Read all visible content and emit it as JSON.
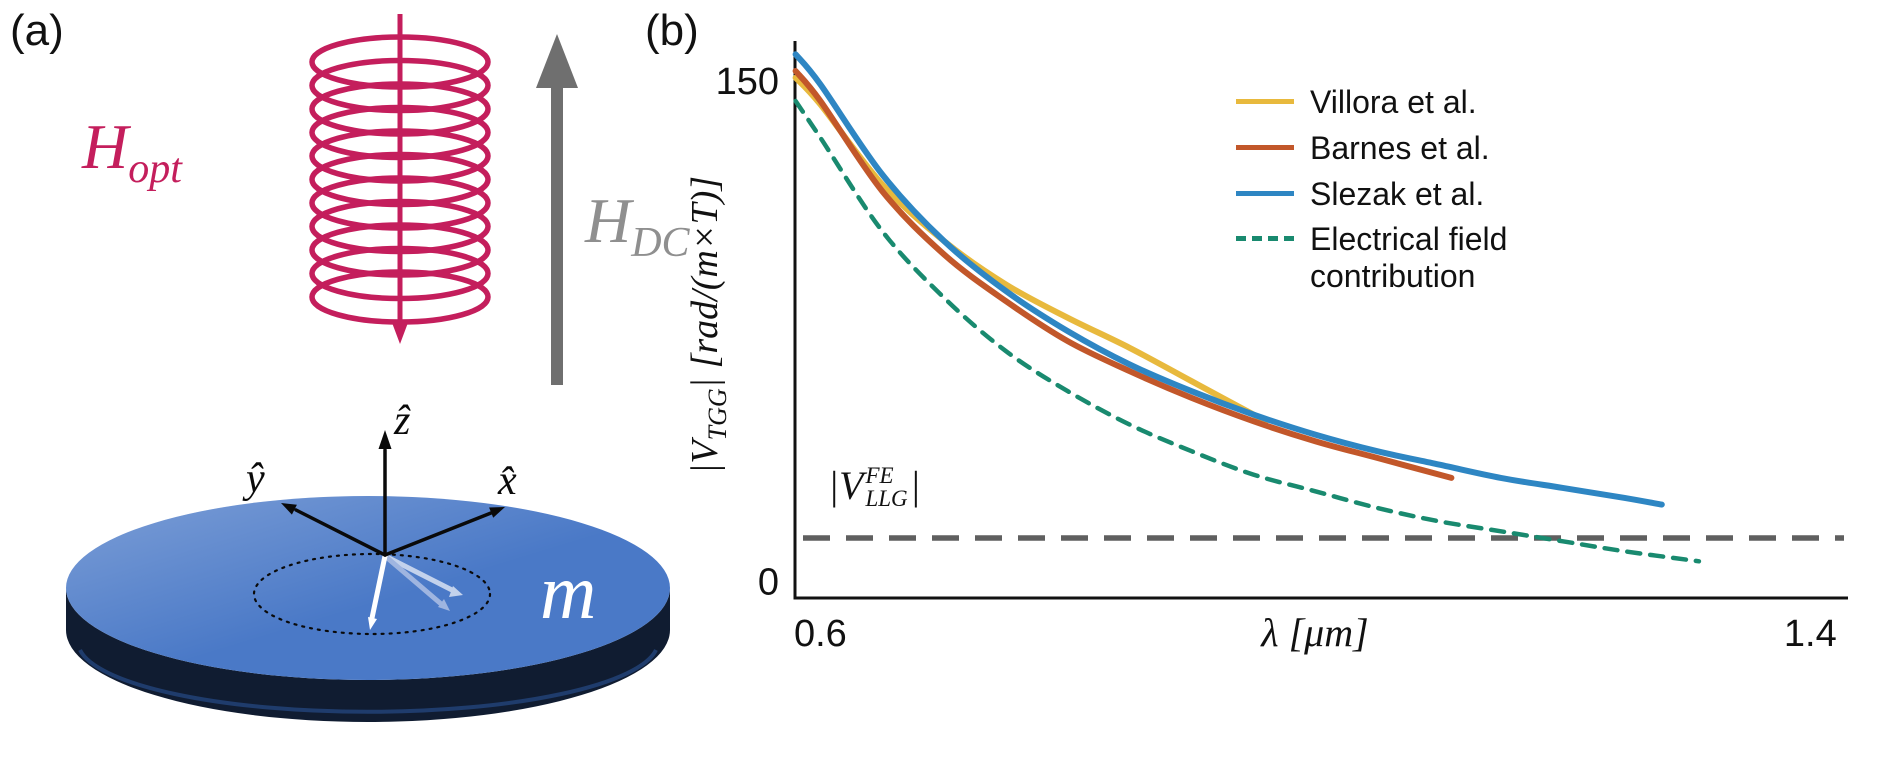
{
  "figure_labels": {
    "a": "(a)",
    "b": "(b)"
  },
  "panel_a": {
    "h_opt": {
      "base": "H",
      "sub": "opt"
    },
    "h_dc": {
      "base": "H",
      "sub": "DC"
    },
    "axes": {
      "z": "ẑ",
      "x": "x̂",
      "y": "ŷ"
    },
    "magnetization_label": "m",
    "colors": {
      "coil": "#C41E5C",
      "dc_arrow": "#6F6F6F",
      "dc_label": "#8F8F8F",
      "disk_top": "#4A79C7",
      "disk_side": "#101C31"
    }
  },
  "chart_data": {
    "type": "line",
    "title": "",
    "xlabel": "λ [μm]",
    "ylabel": "|V_TGG| [rad/(m×T)]",
    "ylabel_parts": {
      "open": "|V",
      "sub": "TGG",
      "close": "| [rad/(m×T)]"
    },
    "xlim": [
      0.5795,
      1.4305
    ],
    "ylim": [
      -5,
      162
    ],
    "xticks": [
      0.6,
      1.4
    ],
    "yticks": [
      0,
      150
    ],
    "grid": false,
    "legend_position": "top-right",
    "series": [
      {
        "name": "Villora et al.",
        "color": "#E8B93D",
        "style": "solid",
        "x": [
          0.58,
          0.6,
          0.65,
          0.7,
          0.75,
          0.8,
          0.85,
          0.9,
          0.96
        ],
        "y": [
          151,
          143,
          119,
          102,
          89,
          79,
          70,
          60,
          48
        ]
      },
      {
        "name": "Barnes et al.",
        "color": "#C2572A",
        "style": "solid",
        "x": [
          0.58,
          0.6,
          0.65,
          0.7,
          0.75,
          0.8,
          0.85,
          0.9,
          0.95,
          1.0,
          1.05,
          1.11
        ],
        "y": [
          153,
          144,
          117,
          98,
          84,
          72,
          63,
          55,
          48,
          42,
          37,
          31
        ]
      },
      {
        "name": "Slezak et al.",
        "color": "#2E86C3",
        "style": "solid",
        "x": [
          0.58,
          0.6,
          0.65,
          0.7,
          0.75,
          0.8,
          0.85,
          0.9,
          0.95,
          1.0,
          1.05,
          1.1,
          1.15,
          1.2,
          1.25,
          1.28
        ],
        "y": [
          158,
          149,
          122,
          102,
          87,
          75,
          65,
          57,
          50,
          44,
          39,
          35,
          31,
          28,
          25,
          23
        ]
      },
      {
        "name": "Electrical field contribution",
        "color": "#198A6F",
        "style": "dashed",
        "x": [
          0.58,
          0.6,
          0.65,
          0.7,
          0.75,
          0.8,
          0.85,
          0.9,
          0.95,
          1.0,
          1.05,
          1.1,
          1.15,
          1.2,
          1.25,
          1.31
        ],
        "y": [
          144,
          133,
          105,
          85,
          69,
          57,
          47,
          39,
          32,
          27,
          22,
          18,
          15,
          12,
          9,
          6
        ]
      }
    ],
    "hline": {
      "value": 13,
      "color": "#5F5F5F",
      "style": "dashed",
      "label_parts": {
        "open": "|V",
        "sup": "FE",
        "sub": "LLG",
        "close": "|"
      }
    }
  }
}
